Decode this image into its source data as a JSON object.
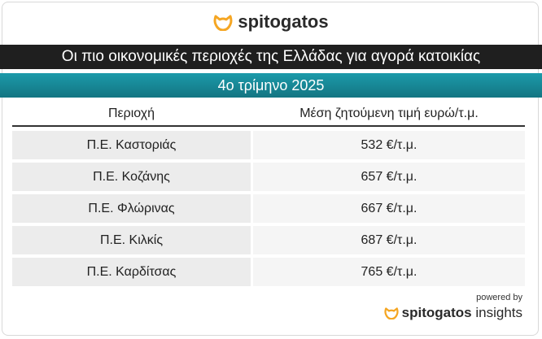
{
  "logo": "spitogatos",
  "title": "Οι πιο οικονομικές περιοχές της Ελλάδας για αγορά κατοικίας",
  "subtitle": "4ο τρίμηνο 2025",
  "table": {
    "header": [
      "Περιοχή",
      "Μέση ζητούμενη τιμή ευρώ/τ.μ."
    ],
    "rows": [
      [
        "Π.Ε. Καστοριάς",
        "532 €/τ.μ."
      ],
      [
        "Π.Ε. Κοζάνης",
        "657 €/τ.μ."
      ],
      [
        "Π.Ε. Φλώρινας",
        "667 €/τ.μ."
      ],
      [
        "Π.Ε. Κιλκίς",
        "687 €/τ.μ."
      ],
      [
        "Π.Ε. Καρδίτσας",
        "765 €/τ.μ."
      ]
    ]
  },
  "footer": {
    "powered_by": "powered by",
    "brand": "spitogatos",
    "product": "insights"
  }
}
